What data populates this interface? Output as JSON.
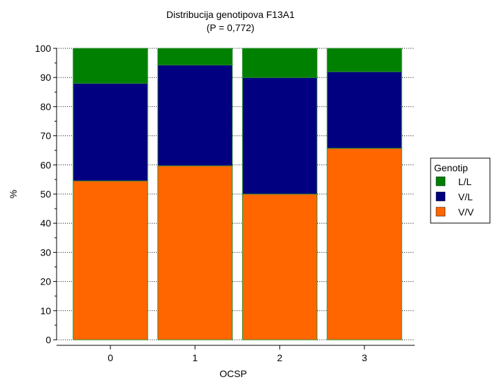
{
  "chart_data": {
    "type": "bar",
    "stacked": true,
    "title": "Distribucija genotipova F13A1",
    "subtitle": "(P = 0,772)",
    "xlabel": "OCSP",
    "ylabel": "%",
    "categories": [
      "0",
      "1",
      "2",
      "3"
    ],
    "ylim": [
      0,
      100
    ],
    "yticks": [
      0,
      10,
      20,
      30,
      40,
      50,
      60,
      70,
      80,
      90,
      100
    ],
    "grid": "horizontal",
    "legend": {
      "title": "Genotip",
      "position": "right",
      "entries": [
        "L/L",
        "V/L",
        "V/V"
      ]
    },
    "series": [
      {
        "name": "V/V",
        "color": "#FF6600",
        "values": [
          54.5,
          59.7,
          50.0,
          65.7
        ]
      },
      {
        "name": "V/L",
        "color": "#000080",
        "values": [
          33.5,
          34.6,
          40.0,
          26.3
        ]
      },
      {
        "name": "L/L",
        "color": "#008000",
        "values": [
          12.0,
          5.7,
          10.0,
          8.0
        ]
      }
    ]
  }
}
